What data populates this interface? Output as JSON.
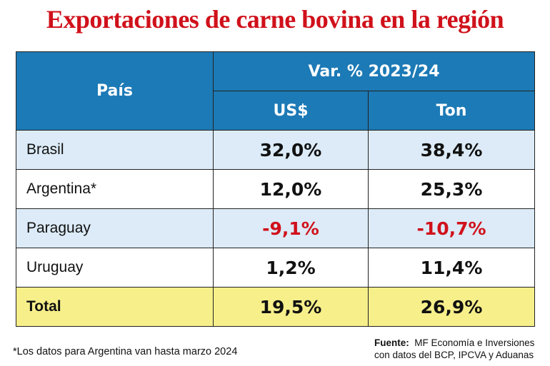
{
  "header": {
    "title": "Exportaciones de carne bovina en la región"
  },
  "table": {
    "column_header": "País",
    "group_header": "Var. % 2023/24",
    "subheaders": [
      "US$",
      "Ton"
    ],
    "rows": [
      [
        "Brasil",
        "32,0%",
        "38,4%"
      ],
      [
        "Argentina*",
        "12,0%",
        "25,3%"
      ],
      [
        "Paraguay",
        "-9,1%",
        "-10,7%"
      ],
      [
        "Uruguay",
        "1,2%",
        "11,4%"
      ],
      [
        "Total",
        "19,5%",
        "26,9%"
      ]
    ]
  },
  "footer": {
    "note": "*Los datos para Argentina van hasta marzo 2024",
    "source_label": "Fuente:",
    "source_text": "MF Economía e Inversiones con datos del BCP, IPCVA y Aduanas"
  }
}
